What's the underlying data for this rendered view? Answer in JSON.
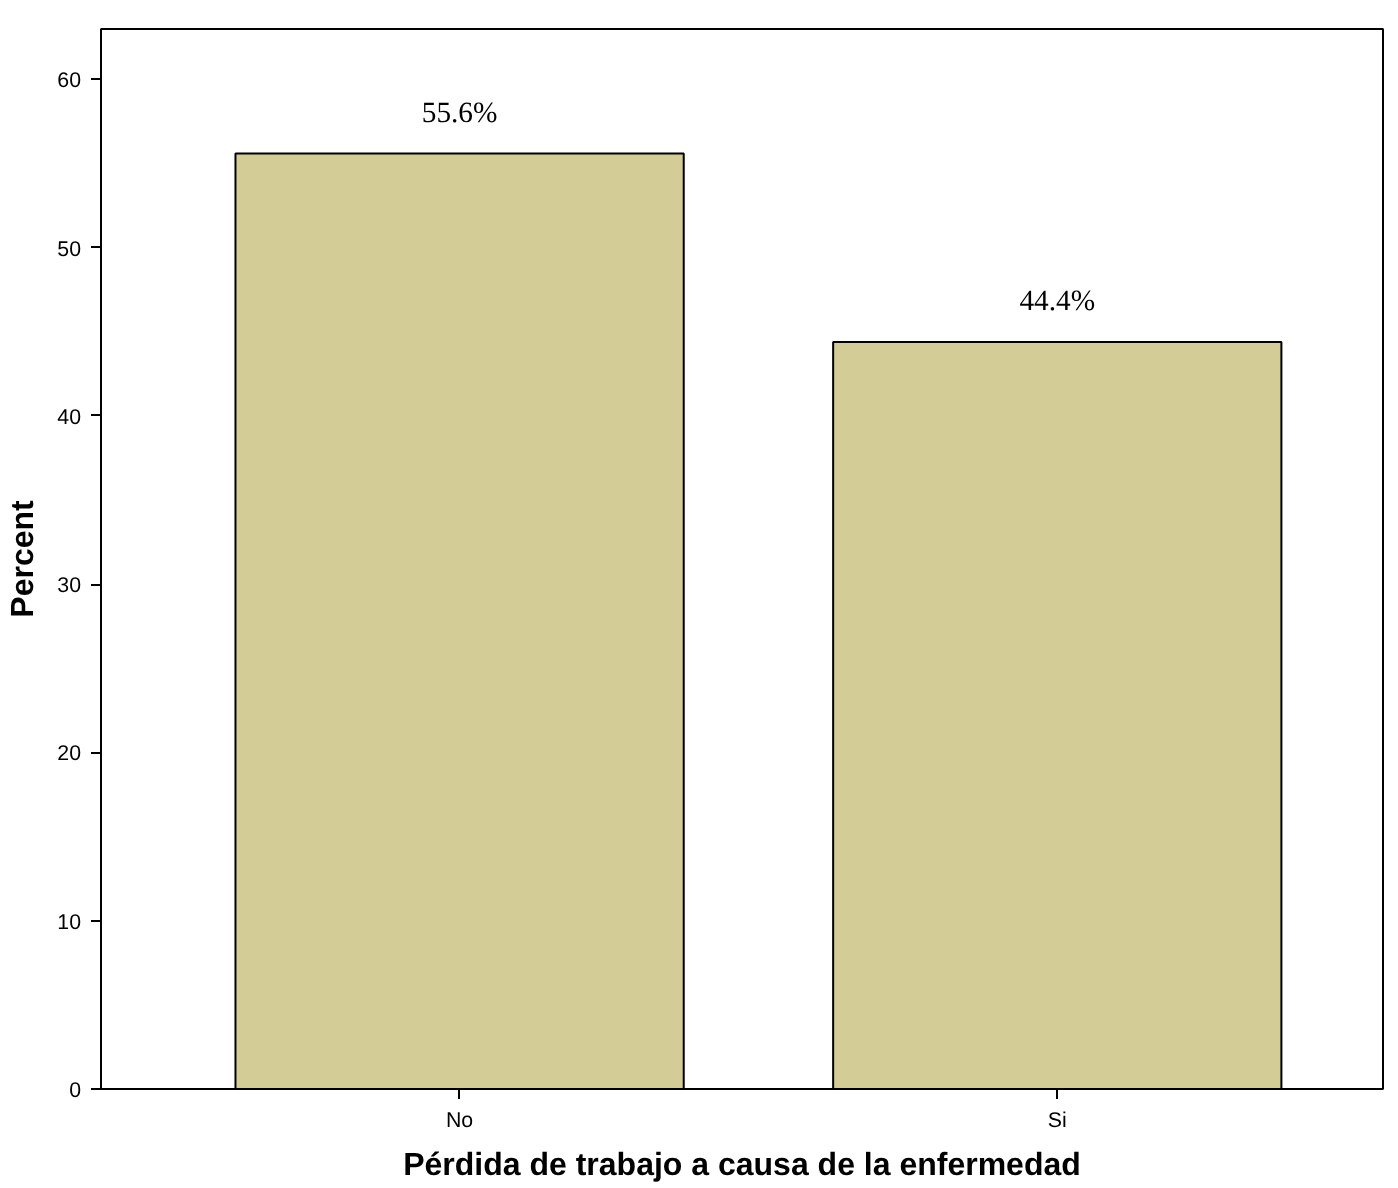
{
  "chart_data": {
    "type": "bar",
    "xlabel": "Pérdida de trabajo a causa de la enfermedad",
    "ylabel": "Percent",
    "categories": [
      "No",
      "Si"
    ],
    "values": [
      55.6,
      44.4
    ],
    "value_labels": [
      "55.6%",
      "44.4%"
    ],
    "color": "#d3cc96",
    "ylim": [
      0,
      63
    ],
    "yticks": [
      0,
      10,
      20,
      30,
      40,
      50,
      60
    ],
    "grid": false
  }
}
